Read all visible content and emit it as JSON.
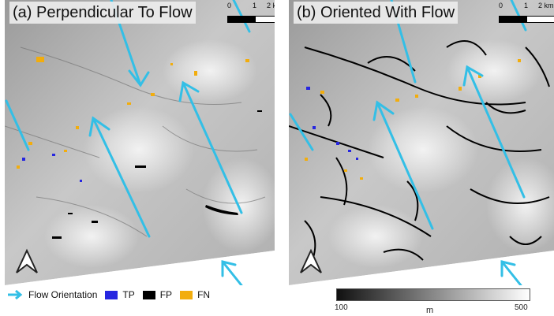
{
  "panels": [
    {
      "title": "(a) Perpendicular To Flow"
    },
    {
      "title": "(b) Oriented With Flow"
    }
  ],
  "scalebar": {
    "ticks": [
      "0",
      "1",
      "2 km"
    ]
  },
  "legend": {
    "flow": {
      "label": "Flow Orientation",
      "color": "#33bfe6"
    },
    "tp": {
      "label": "TP",
      "color": "#2626e0"
    },
    "fp": {
      "label": "FP",
      "color": "#000000"
    },
    "fn": {
      "label": "FN",
      "color": "#f2ad0d"
    }
  },
  "colorbar": {
    "min": "100",
    "max": "500",
    "unit": "m"
  }
}
